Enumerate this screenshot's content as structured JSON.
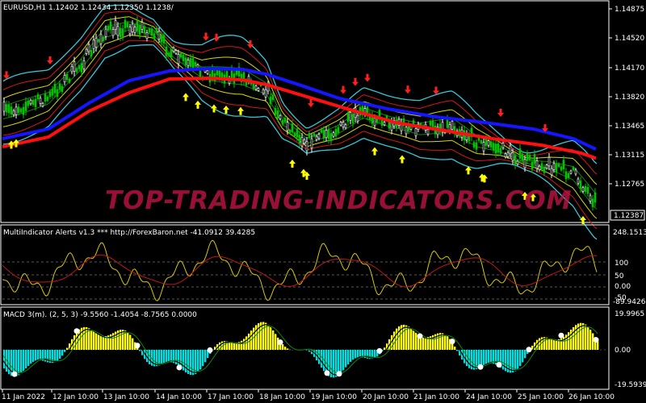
{
  "window": {
    "title": "EURUSD,H1  1.12402 1.12434 1.12350 1.1238/",
    "close_marker": "1.12387",
    "watermark": "TOP-TRADING-INDICATORS.COM"
  },
  "colors": {
    "background": "#000000",
    "frame": "#ffffff",
    "up_candle": "#00c400",
    "band_outer": "#33c8d8",
    "band_red": "#d81818",
    "band_yellow": "#d8d800",
    "band_green": "#0a8a0a",
    "slow_ma": "#1515ff",
    "mid_ma": "#ff1010",
    "buy_arrow": "#ffff00",
    "sell_arrow": "#ff2020",
    "macd_pos": "#ffff00",
    "macd_neg": "#00e0e0"
  },
  "price_panel": {
    "axis_labels": [
      "1.14875",
      "1.14520",
      "1.14170",
      "1.13820",
      "1.13465",
      "1.13115",
      "1.12765",
      "1.12387"
    ],
    "y_min": 1.1238,
    "y_max": 1.1488
  },
  "indicator_panel": {
    "title": "MultiIndicator Alerts v1.3 *** http://ForexBaron.net -41.0912 39.4285",
    "axis_labels": [
      "248.1513",
      "100",
      "50",
      "0.00",
      "-50",
      "-89.9426"
    ]
  },
  "macd_panel": {
    "title": "MACD 3(m). (2, 5, 3) -9.5560 -1.4054 -8.7565 0.0000",
    "axis_labels": [
      "19.9965",
      "0.00",
      "-19.5939"
    ]
  },
  "time_axis": {
    "labels": [
      "11 Jan 2022",
      "12 Jan 10:00",
      "13 Jan 10:00",
      "14 Jan 10:00",
      "17 Jan 10:00",
      "18 Jan 10:00",
      "19 Jan 10:00",
      "20 Jan 10:00",
      "21 Jan 10:00",
      "24 Jan 10:00",
      "25 Jan 10:00",
      "26 Jan 10:00"
    ]
  },
  "signals": {
    "buy_arrow_count": 18,
    "sell_arrow_count": 16
  }
}
